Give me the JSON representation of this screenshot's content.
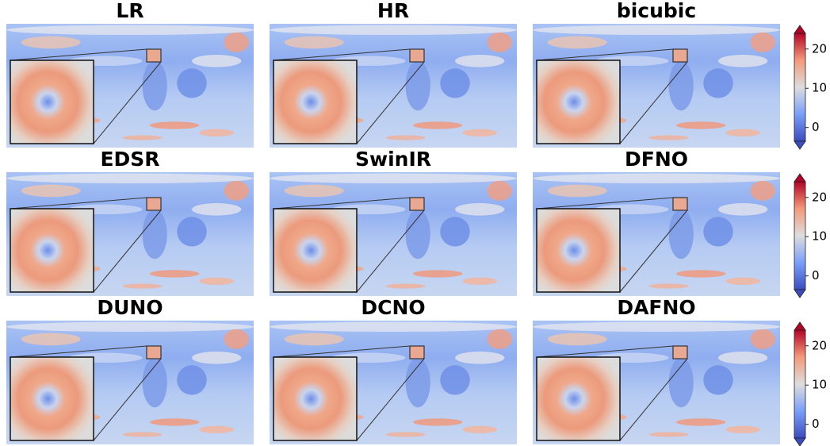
{
  "panels": [
    {
      "title": "LR"
    },
    {
      "title": "HR"
    },
    {
      "title": "bicubic"
    },
    {
      "title": "EDSR"
    },
    {
      "title": "SwinIR"
    },
    {
      "title": "DFNO"
    },
    {
      "title": "DUNO"
    },
    {
      "title": "DCNO"
    },
    {
      "title": "DAFNO"
    }
  ],
  "colorbars": [
    {
      "type": "colorbar",
      "ylim": [
        -3.5,
        24
      ],
      "yticks": [
        0,
        10,
        20
      ]
    },
    {
      "type": "colorbar",
      "ylim": [
        -3.5,
        24
      ],
      "yticks": [
        0,
        10,
        20
      ]
    },
    {
      "type": "colorbar",
      "ylim": [
        -3.5,
        24
      ],
      "yticks": [
        0,
        10,
        20
      ]
    }
  ]
}
